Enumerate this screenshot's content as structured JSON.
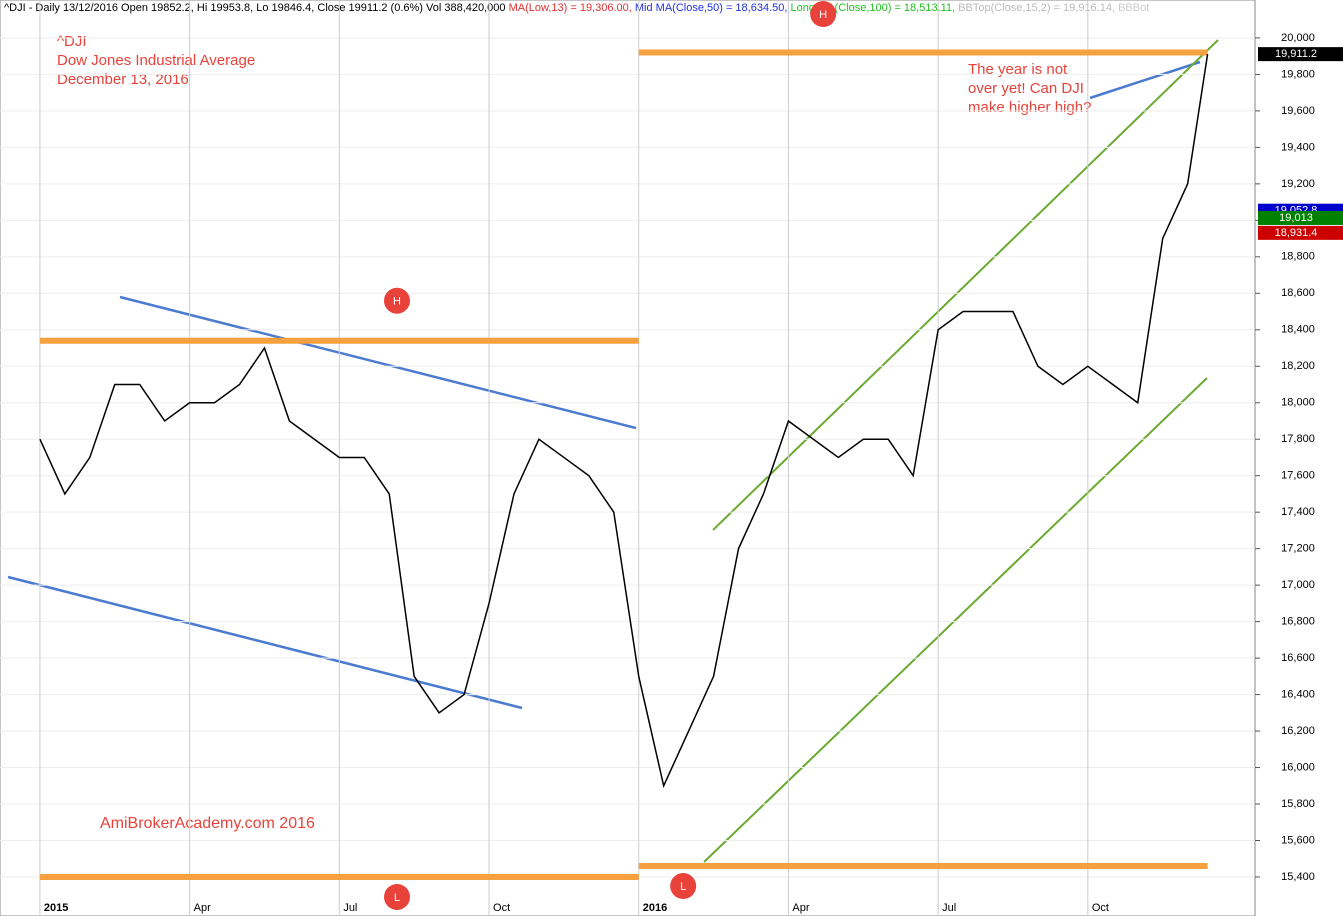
{
  "chart_data": {
    "type": "line",
    "header": {
      "main": "^DJI - Daily 13/12/2016 Open 19852.2, Hi 19953.8, Lo 19846.4, Close 19911.2 (0.6%) Vol 388,420,000",
      "ma_low": "MA(Low,13) = 19,306.00,",
      "ma_mid": "Mid MA(Close,50) = 18,634.50,",
      "ma_long": "Long MA(Close,100) = 18,513.11,",
      "bbtop": "BBTop(Close,15,2) = 19,916.14,",
      "bbbot": "BBBot"
    },
    "title": "^DJI",
    "subtitle": "Dow Jones Industrial Average",
    "date": "December 13, 2016",
    "watermark": "AmiBrokerAcademy.com  2016",
    "annotation": "The year is not over yet! Can DJI make higher high?",
    "x": [
      0,
      0.5,
      1,
      1.5,
      2,
      2.5,
      3,
      3.5,
      4,
      4.5,
      5,
      5.5,
      6,
      6.5,
      7,
      7.5,
      8,
      8.5,
      9,
      9.5,
      10,
      10.5,
      11,
      11.5,
      12,
      12.5,
      13,
      13.5,
      14,
      14.5,
      15,
      15.5,
      16,
      16.5,
      17,
      17.5,
      18,
      18.5,
      19,
      19.5,
      20,
      20.5,
      21,
      21.5,
      22,
      22.5,
      23,
      23.4
    ],
    "values": [
      17800,
      17500,
      17700,
      18100,
      18100,
      17900,
      18000,
      18000,
      18100,
      18300,
      17900,
      17800,
      17700,
      17700,
      17500,
      16500,
      16300,
      16400,
      16900,
      17500,
      17800,
      17700,
      17600,
      17400,
      16500,
      15900,
      16200,
      16500,
      17200,
      17500,
      17900,
      17800,
      17700,
      17800,
      17800,
      17600,
      18400,
      18500,
      18500,
      18500,
      18200,
      18100,
      18200,
      18100,
      18000,
      18900,
      19200,
      19911.2
    ],
    "color": "#000000",
    "xlim": [
      -0.8,
      24.35
    ],
    "xticks": [
      {
        "value": 0,
        "label": "2015"
      },
      {
        "value": 3,
        "label": "Apr"
      },
      {
        "value": 6,
        "label": "Jul"
      },
      {
        "value": 9,
        "label": "Oct"
      },
      {
        "value": 12,
        "label": "2016"
      },
      {
        "value": 15,
        "label": "Apr"
      },
      {
        "value": 18,
        "label": "Jul"
      },
      {
        "value": 21,
        "label": "Oct"
      }
    ],
    "ylim": [
      15186,
      20208
    ],
    "yticks": [
      {
        "value": 15400,
        "label": "15,400"
      },
      {
        "value": 15600,
        "label": "15,600"
      },
      {
        "value": 15800,
        "label": "15,800"
      },
      {
        "value": 16000,
        "label": "16,000"
      },
      {
        "value": 16200,
        "label": "16,200"
      },
      {
        "value": 16400,
        "label": "16,400"
      },
      {
        "value": 16600,
        "label": "16,600"
      },
      {
        "value": 16800,
        "label": "16,800"
      },
      {
        "value": 17000,
        "label": "17,000"
      },
      {
        "value": 17200,
        "label": "17,200"
      },
      {
        "value": 17400,
        "label": "17,400"
      },
      {
        "value": 17600,
        "label": "17,600"
      },
      {
        "value": 17800,
        "label": "17,800"
      },
      {
        "value": 18000,
        "label": "18,000"
      },
      {
        "value": 18200,
        "label": "18,200"
      },
      {
        "value": 18400,
        "label": "18,400"
      },
      {
        "value": 18600,
        "label": "18,600"
      },
      {
        "value": 18800,
        "label": "18,800"
      },
      {
        "value": 19000,
        "label": "19,000"
      },
      {
        "value": 19200,
        "label": "19,200"
      },
      {
        "value": 19400,
        "label": "19,400"
      },
      {
        "value": 19600,
        "label": "19,600"
      },
      {
        "value": 19800,
        "label": "19,800"
      },
      {
        "value": 20000,
        "label": "20,000"
      }
    ],
    "price_markers": [
      {
        "value": 19911.2,
        "label": "19,911.2",
        "color": "#000000"
      },
      {
        "value": 19052.8,
        "label": "19,052.8",
        "color": "#0000cc"
      },
      {
        "value": 19013,
        "label": "19,013",
        "color": "#008000"
      },
      {
        "value": 18931.4,
        "label": "18,931.4",
        "color": "#cc0000"
      }
    ],
    "levels": [
      {
        "value": 18340,
        "from": 0,
        "to": 12,
        "mark": "H"
      },
      {
        "value": 15400,
        "from": 0,
        "to": 12,
        "mark": "L"
      },
      {
        "value": 19920,
        "from": 12,
        "to": 23.4,
        "mark": "H"
      },
      {
        "value": 15460,
        "from": 12,
        "to": 23.4,
        "mark": "L"
      }
    ],
    "level_color": "#f7a040"
  }
}
